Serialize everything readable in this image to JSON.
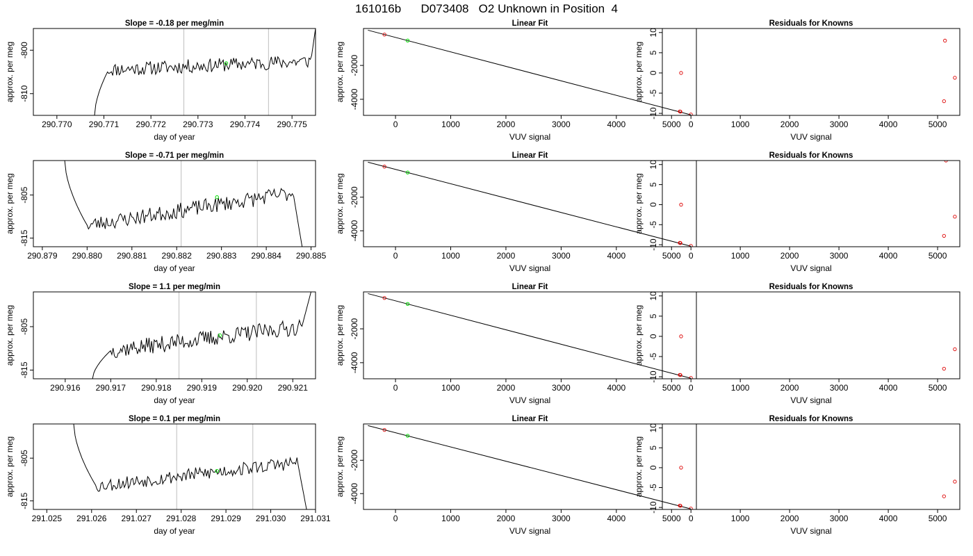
{
  "page": {
    "title": "161016b      D073408   O2 Unknown in Position  4"
  },
  "colors": {
    "trace": "#000000",
    "grid_vline": "#bebebe",
    "unknown_point": "#00dd00",
    "known_point": "#dd0000",
    "axes": "#000000"
  },
  "chart_data": [
    {
      "type": "line",
      "row": 1,
      "column": "timeseries",
      "title": "Slope =  -0.18  per meg/min",
      "xlabel": "day of year",
      "ylabel": "approx. per meg",
      "xlim": [
        290.7695,
        290.7755
      ],
      "ylim": [
        -815,
        -795
      ],
      "xticks": [
        290.77,
        290.771,
        290.772,
        290.773,
        290.774,
        290.775
      ],
      "xtick_labels": [
        "290.770",
        "290.771",
        "290.772",
        "290.773",
        "290.774",
        "290.775"
      ],
      "yticks": [
        -800,
        -810
      ],
      "ytick_labels": [
        "-800",
        "-810"
      ],
      "vlines": [
        290.7727,
        290.7745
      ],
      "trace": {
        "x_start": 290.7708,
        "x_end": 290.7755,
        "start_y": -815,
        "end_y": -795,
        "rise_end": 290.7711,
        "fall_start": 290.7754,
        "level_start": -804.5,
        "level_end": -802.5,
        "noise": 1.6,
        "seed": 11
      },
      "unknown_point": {
        "x": 290.7736,
        "y": -803
      }
    },
    {
      "type": "scatter",
      "row": 1,
      "column": "fit",
      "title": "Linear Fit",
      "xlabel": "VUV signal",
      "ylabel": "approx. per meg",
      "xlim": [
        -580,
        5450
      ],
      "ylim": [
        -4950,
        180
      ],
      "xticks": [
        0,
        1000,
        2000,
        3000,
        4000,
        5000
      ],
      "xtick_labels": [
        "0",
        "1000",
        "2000",
        "3000",
        "4000",
        "5000"
      ],
      "yticks": [
        -2000,
        -4000
      ],
      "ytick_labels": [
        "-2000",
        "-4000"
      ],
      "fit_line": {
        "x": [
          -500,
          5350
        ],
        "y": [
          80,
          -4920
        ]
      },
      "known_points": [
        {
          "x": -200,
          "y": -180
        },
        {
          "x": 5150,
          "y": -4720
        },
        {
          "x": 5160,
          "y": -4730
        },
        {
          "x": 5350,
          "y": -4900
        }
      ],
      "unknown_point": {
        "x": 220,
        "y": -530
      }
    },
    {
      "type": "scatter",
      "row": 1,
      "column": "residuals",
      "title": "Residuals for Knowns",
      "xlabel": "VUV signal",
      "ylabel": "approx. per meg",
      "xlim": [
        -580,
        5450
      ],
      "ylim": [
        -10.5,
        11
      ],
      "xticks": [
        0,
        1000,
        2000,
        3000,
        4000,
        5000
      ],
      "xtick_labels": [
        "0",
        "1000",
        "2000",
        "3000",
        "4000",
        "5000"
      ],
      "yticks": [
        10,
        5,
        0,
        -5,
        -10
      ],
      "ytick_labels": [
        "10",
        "5",
        "0",
        "-5",
        "-10"
      ],
      "known_points": [
        {
          "x": -200,
          "y": 0
        },
        {
          "x": 5150,
          "y": 8
        },
        {
          "x": 5130,
          "y": -7
        },
        {
          "x": 5350,
          "y": -1.2
        }
      ]
    },
    {
      "type": "line",
      "row": 2,
      "column": "timeseries",
      "title": "Slope =  -0.71  per meg/min",
      "xlabel": "day of year",
      "ylabel": "approx. per meg",
      "xlim": [
        290.8788,
        290.8851
      ],
      "ylim": [
        -817,
        -797
      ],
      "xticks": [
        290.879,
        290.88,
        290.881,
        290.882,
        290.883,
        290.884,
        290.885
      ],
      "xtick_labels": [
        "290.879",
        "290.880",
        "290.881",
        "290.882",
        "290.883",
        "290.884",
        "290.885"
      ],
      "yticks": [
        -805,
        -815
      ],
      "ytick_labels": [
        "-805",
        "-815"
      ],
      "vlines": [
        290.8821,
        290.8838
      ],
      "trace": {
        "x_start": 290.8795,
        "x_end": 290.8848,
        "start_y": -797,
        "end_y": -817,
        "rise_end": 290.88,
        "fall_start": 290.8846,
        "level_start": -812,
        "level_end": -804.5,
        "noise": 1.8,
        "seed": 23
      },
      "unknown_point": {
        "x": 290.8829,
        "y": -805.5
      }
    },
    {
      "type": "scatter",
      "row": 2,
      "column": "fit",
      "title": "Linear Fit",
      "xlabel": "VUV signal",
      "ylabel": "approx. per meg",
      "xlim": [
        -580,
        5450
      ],
      "ylim": [
        -4950,
        180
      ],
      "xticks": [
        0,
        1000,
        2000,
        3000,
        4000,
        5000
      ],
      "xtick_labels": [
        "0",
        "1000",
        "2000",
        "3000",
        "4000",
        "5000"
      ],
      "yticks": [
        -2000,
        -4000
      ],
      "ytick_labels": [
        "-2000",
        "-4000"
      ],
      "fit_line": {
        "x": [
          -500,
          5350
        ],
        "y": [
          80,
          -4920
        ]
      },
      "known_points": [
        {
          "x": -200,
          "y": -180
        },
        {
          "x": 5150,
          "y": -4720
        },
        {
          "x": 5160,
          "y": -4730
        },
        {
          "x": 5350,
          "y": -4900
        }
      ],
      "unknown_point": {
        "x": 220,
        "y": -530
      }
    },
    {
      "type": "scatter",
      "row": 2,
      "column": "residuals",
      "title": "Residuals for Knowns",
      "xlabel": "VUV signal",
      "ylabel": "approx. per meg",
      "xlim": [
        -580,
        5450
      ],
      "ylim": [
        -10.5,
        11
      ],
      "xticks": [
        0,
        1000,
        2000,
        3000,
        4000,
        5000
      ],
      "xtick_labels": [
        "0",
        "1000",
        "2000",
        "3000",
        "4000",
        "5000"
      ],
      "yticks": [
        10,
        5,
        0,
        -5,
        -10
      ],
      "ytick_labels": [
        "10",
        "5",
        "0",
        "-5",
        "-10"
      ],
      "known_points": [
        {
          "x": -200,
          "y": 0
        },
        {
          "x": 5170,
          "y": 11
        },
        {
          "x": 5130,
          "y": -7.8
        },
        {
          "x": 5350,
          "y": -3
        }
      ]
    },
    {
      "type": "line",
      "row": 3,
      "column": "timeseries",
      "title": "Slope =  1.1  per meg/min",
      "xlabel": "day of year",
      "ylabel": "approx. per meg",
      "xlim": [
        290.9153,
        290.9215
      ],
      "ylim": [
        -817,
        -797
      ],
      "xticks": [
        290.916,
        290.917,
        290.918,
        290.919,
        290.92,
        290.921
      ],
      "xtick_labels": [
        "290.916",
        "290.917",
        "290.918",
        "290.919",
        "290.920",
        "290.921"
      ],
      "yticks": [
        -805,
        -815
      ],
      "ytick_labels": [
        "-805",
        "-815"
      ],
      "vlines": [
        290.9185,
        290.9202
      ],
      "trace": {
        "x_start": 290.9166,
        "x_end": 290.9214,
        "start_y": -817,
        "end_y": -797,
        "rise_end": 290.917,
        "fall_start": 290.9212,
        "level_start": -810.5,
        "level_end": -805,
        "noise": 1.9,
        "seed": 37
      },
      "unknown_point": {
        "x": 290.9194,
        "y": -807
      }
    },
    {
      "type": "scatter",
      "row": 3,
      "column": "fit",
      "title": "Linear Fit",
      "xlabel": "VUV signal",
      "ylabel": "approx. per meg",
      "xlim": [
        -580,
        5450
      ],
      "ylim": [
        -4950,
        180
      ],
      "xticks": [
        0,
        1000,
        2000,
        3000,
        4000,
        5000
      ],
      "xtick_labels": [
        "0",
        "1000",
        "2000",
        "3000",
        "4000",
        "5000"
      ],
      "yticks": [
        -2000,
        -4000
      ],
      "ytick_labels": [
        "-2000",
        "-4000"
      ],
      "fit_line": {
        "x": [
          -500,
          5350
        ],
        "y": [
          80,
          -4920
        ]
      },
      "known_points": [
        {
          "x": -200,
          "y": -180
        },
        {
          "x": 5150,
          "y": -4720
        },
        {
          "x": 5160,
          "y": -4730
        },
        {
          "x": 5350,
          "y": -4900
        }
      ],
      "unknown_point": {
        "x": 220,
        "y": -530
      }
    },
    {
      "type": "scatter",
      "row": 3,
      "column": "residuals",
      "title": "Residuals for Knowns",
      "xlabel": "VUV signal",
      "ylabel": "approx. per meg",
      "xlim": [
        -580,
        5450
      ],
      "ylim": [
        -10.5,
        11
      ],
      "xticks": [
        0,
        1000,
        2000,
        3000,
        4000,
        5000
      ],
      "xtick_labels": [
        "0",
        "1000",
        "2000",
        "3000",
        "4000",
        "5000"
      ],
      "yticks": [
        10,
        5,
        0,
        -5,
        -10
      ],
      "ytick_labels": [
        "10",
        "5",
        "0",
        "-5",
        "-10"
      ],
      "known_points": [
        {
          "x": -200,
          "y": 0
        },
        {
          "x": 5130,
          "y": -8
        },
        {
          "x": 5350,
          "y": -3.2
        }
      ]
    },
    {
      "type": "line",
      "row": 4,
      "column": "timeseries",
      "title": "Slope =  0.1  per meg/min",
      "xlabel": "day of year",
      "ylabel": "approx. per meg",
      "xlim": [
        291.0247,
        291.031
      ],
      "ylim": [
        -817,
        -797
      ],
      "xticks": [
        291.025,
        291.026,
        291.027,
        291.028,
        291.029,
        291.03,
        291.031
      ],
      "xtick_labels": [
        "291.025",
        "291.026",
        "291.027",
        "291.028",
        "291.029",
        "291.030",
        "291.031"
      ],
      "yticks": [
        -805,
        -815
      ],
      "ytick_labels": [
        "-805",
        "-815"
      ],
      "vlines": [
        291.0279,
        291.0296
      ],
      "trace": {
        "x_start": 291.0256,
        "x_end": 291.0308,
        "start_y": -797,
        "end_y": -817,
        "rise_end": 291.0261,
        "fall_start": 291.0306,
        "level_start": -811.5,
        "level_end": -806,
        "noise": 1.6,
        "seed": 53
      },
      "unknown_point": {
        "x": 291.0288,
        "y": -808
      }
    },
    {
      "type": "scatter",
      "row": 4,
      "column": "fit",
      "title": "Linear Fit",
      "xlabel": "VUV signal",
      "ylabel": "approx. per meg",
      "xlim": [
        -580,
        5450
      ],
      "ylim": [
        -4950,
        180
      ],
      "xticks": [
        0,
        1000,
        2000,
        3000,
        4000,
        5000
      ],
      "xtick_labels": [
        "0",
        "1000",
        "2000",
        "3000",
        "4000",
        "5000"
      ],
      "yticks": [
        -2000,
        -4000
      ],
      "ytick_labels": [
        "-2000",
        "-4000"
      ],
      "fit_line": {
        "x": [
          -500,
          5350
        ],
        "y": [
          80,
          -4920
        ]
      },
      "known_points": [
        {
          "x": -200,
          "y": -180
        },
        {
          "x": 5150,
          "y": -4720
        },
        {
          "x": 5160,
          "y": -4730
        },
        {
          "x": 5350,
          "y": -4900
        }
      ],
      "unknown_point": {
        "x": 220,
        "y": -530
      }
    },
    {
      "type": "scatter",
      "row": 4,
      "column": "residuals",
      "title": "Residuals for Knowns",
      "xlabel": "VUV signal",
      "ylabel": "approx. per meg",
      "xlim": [
        -580,
        5450
      ],
      "ylim": [
        -10.5,
        11
      ],
      "xticks": [
        0,
        1000,
        2000,
        3000,
        4000,
        5000
      ],
      "xtick_labels": [
        "0",
        "1000",
        "2000",
        "3000",
        "4000",
        "5000"
      ],
      "yticks": [
        10,
        5,
        0,
        -5,
        -10
      ],
      "ytick_labels": [
        "10",
        "5",
        "0",
        "-5",
        "-10"
      ],
      "known_points": [
        {
          "x": -200,
          "y": 0
        },
        {
          "x": 5130,
          "y": -7.2
        },
        {
          "x": 5350,
          "y": -3.5
        }
      ]
    }
  ]
}
